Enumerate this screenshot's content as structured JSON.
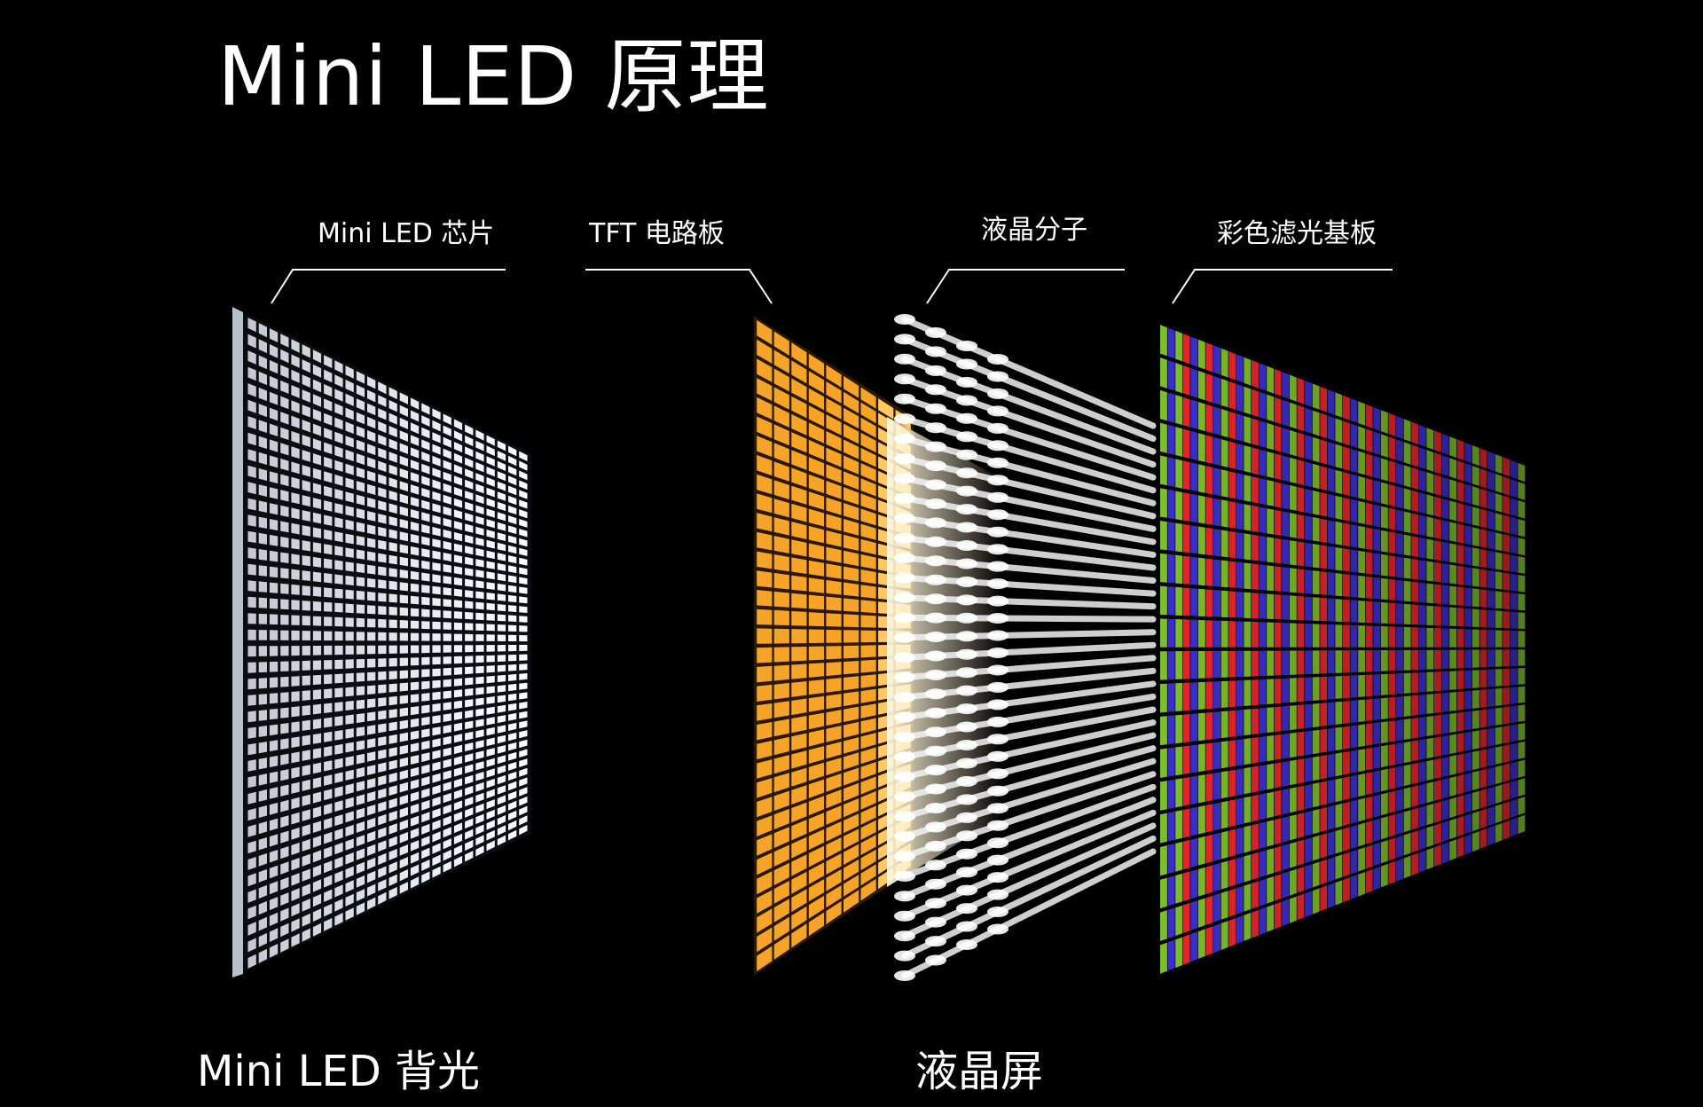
{
  "title": "Mini LED 原理",
  "layers": [
    {
      "label": "Mini LED 芯片"
    },
    {
      "label": "TFT 电路板"
    },
    {
      "label": "液晶分子"
    },
    {
      "label": "彩色滤光基板"
    }
  ],
  "captions": {
    "backlight": "Mini LED 背光",
    "lcd": "液晶屏"
  },
  "colors": {
    "background": "#000000",
    "text": "#ffffff",
    "chip_panel": "#dfe6ee",
    "tft_panel": "#f5a428",
    "liquid_crystal": "#f2f2f2",
    "filter_red": "#e8262c",
    "filter_blue": "#3a2fd0",
    "filter_green": "#7bbf2a"
  }
}
